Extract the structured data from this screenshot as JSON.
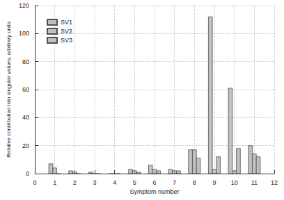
{
  "chart_data": {
    "type": "bar",
    "x_label": "Symptom number",
    "y_label": "Relative contribution into singular values, arbitrary units",
    "x": [
      1,
      2,
      3,
      4,
      5,
      6,
      7,
      8,
      9,
      10,
      11
    ],
    "series": [
      {
        "name": "SV1",
        "color": "#c0c0c0",
        "values": [
          7,
          2,
          1,
          0,
          3,
          6,
          3,
          17,
          112,
          61,
          20
        ]
      },
      {
        "name": "SV2",
        "color": "#c0c0c0",
        "values": [
          4,
          1,
          0,
          0,
          2,
          3,
          2,
          17,
          3,
          2,
          14
        ]
      },
      {
        "name": "SV3",
        "color": "#c0c0c0",
        "values": [
          0,
          0,
          0,
          0,
          1,
          2,
          2,
          11,
          12,
          18,
          12
        ]
      }
    ],
    "xlim": [
      0,
      12
    ],
    "xticks": [
      0,
      1,
      2,
      3,
      4,
      5,
      6,
      7,
      8,
      9,
      10,
      11,
      12
    ],
    "ylim": [
      0,
      120
    ],
    "yticks": [
      0,
      20,
      40,
      60,
      80,
      100,
      120
    ],
    "grid": true,
    "legend": "top-left"
  }
}
